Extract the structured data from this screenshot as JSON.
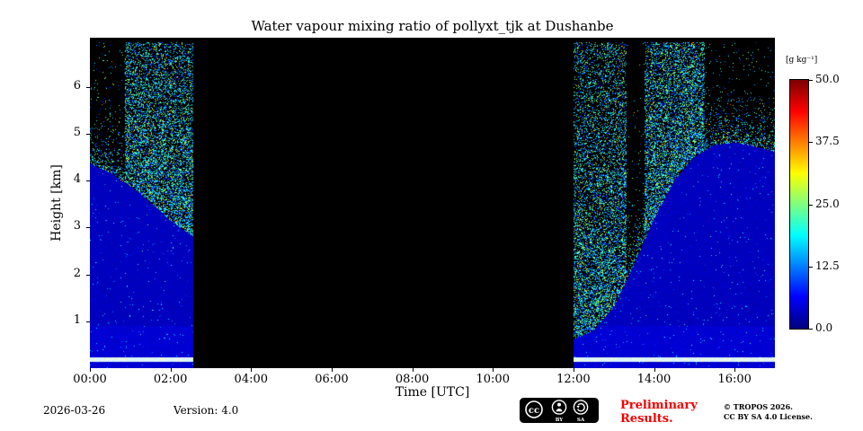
{
  "footer": {
    "date": "2026-03-26",
    "version": "Version: 4.0",
    "preliminary_line1": "Preliminary",
    "preliminary_line2": "Results.",
    "copyright": "© TROPOS 2026.",
    "license": "CC BY SA 4.0 License.",
    "badge": {
      "cc": "cc",
      "by": "BY",
      "sa": "SA"
    }
  },
  "chart_data": {
    "type": "heatmap",
    "title": "Water vapour mixing ratio of pollyxt_tjk at Dushanbe",
    "xlabel": "Time [UTC]",
    "ylabel": "Height [km]",
    "x_tick_labels": [
      "00:00",
      "02:00",
      "04:00",
      "06:00",
      "08:00",
      "10:00",
      "12:00",
      "14:00",
      "16:00"
    ],
    "x_tick_hours": [
      0,
      2,
      4,
      6,
      8,
      10,
      12,
      14,
      16
    ],
    "x_range_hours": [
      0,
      17
    ],
    "y_tick_labels": [
      "1",
      "2",
      "3",
      "4",
      "5",
      "6"
    ],
    "y_tick_values": [
      1,
      2,
      3,
      4,
      5,
      6
    ],
    "y_range_km": [
      0,
      7.05
    ],
    "colorbar": {
      "label": "[g kg⁻¹]",
      "tick_labels": [
        "0.0",
        "12.5",
        "25.0",
        "37.5",
        "50.0"
      ],
      "tick_values": [
        0,
        12.5,
        25,
        37.5,
        50
      ],
      "range": [
        0,
        50
      ],
      "colormap": "jet"
    },
    "background": "black = no data (laser off / daylight gap 02:30–12:00 UTC)",
    "segments": [
      {
        "t_start": 0.0,
        "t_end": 2.55,
        "top_km": [
          4.35,
          4.15,
          3.85,
          3.5,
          3.1,
          2.8
        ],
        "noise_top_km": 6.95
      },
      {
        "t_start": 12.0,
        "t_end": 17.0,
        "top_km": [
          0.6,
          0.8,
          1.3,
          2.2,
          3.2,
          4.0,
          4.5,
          4.75,
          4.8,
          4.72,
          4.6
        ],
        "noise_top_km": 6.95
      }
    ],
    "plumes": [
      [
        0.85,
        2.55
      ],
      [
        12.0,
        13.3
      ],
      [
        13.75,
        15.25
      ]
    ],
    "surface_line_km": 0.17,
    "value_summary": {
      "low_blue_band_g_kg": "0-5",
      "speckle_noise_g_kg": "5-30"
    }
  }
}
